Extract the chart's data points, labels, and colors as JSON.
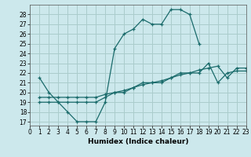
{
  "xlabel": "Humidex (Indice chaleur)",
  "bg_color": "#cce8ec",
  "grid_color": "#aacccc",
  "line_color": "#1a6b6b",
  "xlim": [
    0,
    23
  ],
  "ylim": [
    16.6,
    29.0
  ],
  "xticks": [
    0,
    1,
    2,
    3,
    4,
    5,
    6,
    7,
    8,
    9,
    10,
    11,
    12,
    13,
    14,
    15,
    16,
    17,
    18,
    19,
    20,
    21,
    22,
    23
  ],
  "yticks": [
    17,
    18,
    19,
    20,
    21,
    22,
    23,
    24,
    25,
    26,
    27,
    28
  ],
  "series": [
    {
      "x": [
        1,
        2,
        3,
        4,
        5,
        6,
        7,
        8,
        9,
        10,
        11,
        12,
        13,
        14,
        15,
        16,
        17,
        18
      ],
      "y": [
        21.5,
        20,
        19,
        18,
        17,
        17,
        17,
        19,
        24.5,
        26,
        26.5,
        27.5,
        27,
        27,
        28.5,
        28.5,
        28,
        25
      ]
    },
    {
      "x": [
        1,
        2,
        3,
        4,
        5,
        6,
        7,
        8,
        9,
        10,
        11,
        12,
        13,
        14,
        15,
        16,
        17,
        18,
        19,
        20,
        21,
        22,
        23
      ],
      "y": [
        19,
        19,
        19,
        19,
        19,
        19,
        19,
        19.5,
        20,
        20,
        20.5,
        21,
        21,
        21,
        21.5,
        22,
        22,
        22,
        23,
        21,
        22,
        22.2,
        22.2
      ]
    },
    {
      "x": [
        1,
        2,
        3,
        4,
        5,
        6,
        7,
        8,
        9,
        10,
        11,
        12,
        13,
        14,
        15,
        16,
        17,
        18,
        19,
        20,
        21,
        22,
        23
      ],
      "y": [
        19.5,
        19.5,
        19.5,
        19.5,
        19.5,
        19.5,
        19.5,
        19.8,
        20,
        20.2,
        20.5,
        20.8,
        21,
        21.2,
        21.5,
        21.8,
        22,
        22.3,
        22.5,
        22.7,
        21.5,
        22.5,
        22.5
      ]
    }
  ]
}
